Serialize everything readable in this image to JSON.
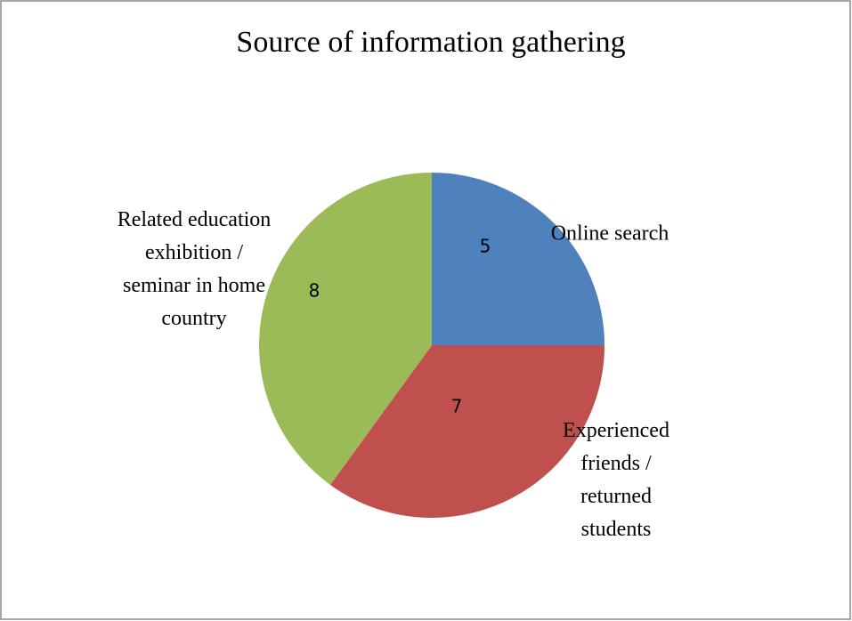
{
  "chart_data": {
    "type": "pie",
    "title": "Source of information gathering",
    "categories": [
      "Online search",
      "Experienced friends / returned students",
      "Related education exhibition / seminar in home country"
    ],
    "values": [
      5,
      7,
      8
    ],
    "colors": [
      "#4f81bd",
      "#c0504d",
      "#9bbb59"
    ]
  }
}
